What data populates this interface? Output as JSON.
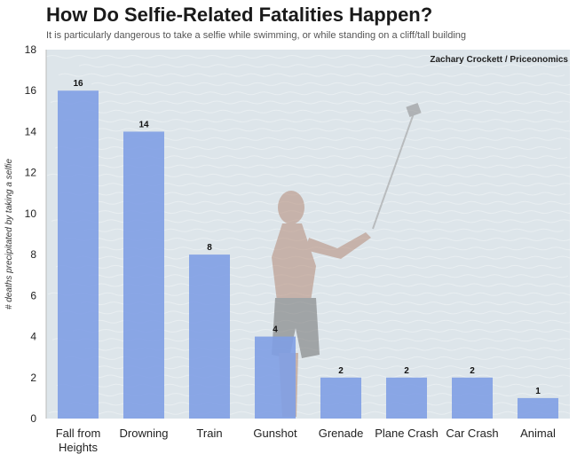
{
  "chart_data": {
    "type": "bar",
    "title": "How Do Selfie-Related Fatalities Happen?",
    "subtitle": "It is particularly dangerous to take a selfie while swimming, or while standing on a cliff/tall building",
    "credit": "Zachary Crockett / Priceonomics",
    "ylabel": "# deaths precipitated by taking a selfie",
    "xlabel": "",
    "ylim": [
      0,
      18
    ],
    "yticks": [
      0,
      2,
      4,
      6,
      8,
      10,
      12,
      14,
      16,
      18
    ],
    "categories": [
      [
        "Fall from",
        "Heights"
      ],
      [
        "Drowning"
      ],
      [
        "Train"
      ],
      [
        "Gunshot"
      ],
      [
        "Grenade"
      ],
      [
        "Plane Crash"
      ],
      [
        "Car Crash"
      ],
      [
        "Animal"
      ]
    ],
    "values": [
      16,
      14,
      8,
      4,
      2,
      2,
      2,
      1
    ],
    "bar_color": "#7f9fe4",
    "background_color": "#dde5ea",
    "grid": false,
    "background_image": "man-taking-selfie-in-sea"
  }
}
